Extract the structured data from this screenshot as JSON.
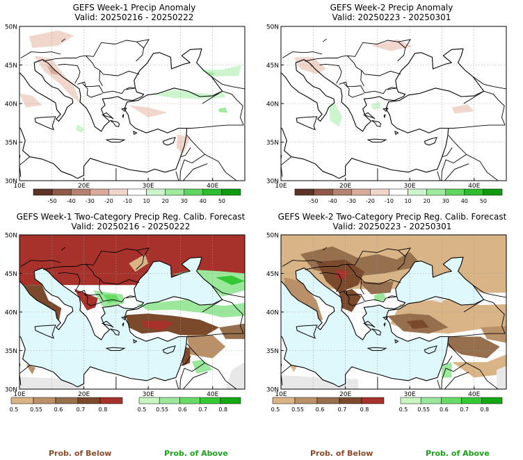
{
  "panels": [
    {
      "id": "w1-anom",
      "title": "GEFS Week-1 Precip Anomaly",
      "valid": "Valid: 20250216 - 20250222",
      "kind": "anomaly"
    },
    {
      "id": "w2-anom",
      "title": "GEFS Week-2 Precip Anomaly",
      "valid": "Valid: 20250223 - 20250301",
      "kind": "anomaly"
    },
    {
      "id": "w1-prob",
      "title": "GEFS Week-1 Two-Category Precip Reg. Calib. Forecast",
      "valid": "Valid: 20250216 - 20250222",
      "kind": "prob"
    },
    {
      "id": "w2-prob",
      "title": "GEFS Week-2 Two-Category Precip Reg. Calib. Forecast",
      "valid": "Valid: 20250223 - 20250301",
      "kind": "prob"
    }
  ],
  "axes": {
    "lat_labels": [
      "50N",
      "45N",
      "40N",
      "35N",
      "30N"
    ],
    "lon_labels": [
      "10E",
      "20E",
      "30E",
      "40E"
    ]
  },
  "anomaly_legend": {
    "labels": [
      "-50",
      "-40",
      "-30",
      "-20",
      "-10",
      "10",
      "20",
      "30",
      "40",
      "50"
    ],
    "colors": [
      "#5b3426",
      "#8e5a47",
      "#b48270",
      "#d9ab9b",
      "#f1d6cc",
      "#ffffff",
      "#cdf5cd",
      "#9eea9e",
      "#5fd65f",
      "#2ebd2e",
      "#0f9a0f"
    ]
  },
  "prob_legend_below": {
    "labels": [
      "0.5",
      "0.55",
      "0.6",
      "0.7",
      "0.8"
    ],
    "colors": [
      "#d8b486",
      "#b99068",
      "#96704e",
      "#7b4a2c",
      "#a6322b"
    ]
  },
  "prob_legend_above": {
    "labels": [
      "0.5",
      "0.55",
      "0.6",
      "0.7",
      "0.8"
    ],
    "colors": [
      "#c9f5c0",
      "#9be79b",
      "#66dc66",
      "#35c835",
      "#14a814"
    ]
  },
  "footer": {
    "below_label": "Prob. of Below",
    "above_label": "Prob. of Above"
  },
  "colors": {
    "sea": "#dff8fb",
    "nodata": "#e8e8e8",
    "coast": "#000000",
    "grid": "#9a9a9a"
  }
}
